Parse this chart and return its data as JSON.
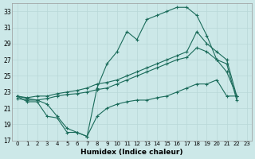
{
  "xlabel": "Humidex (Indice chaleur)",
  "bg_color": "#cce8e8",
  "line_color": "#1a6b5a",
  "grid_color": "#b8d8d8",
  "grid_minor_color": "#ccdddd",
  "ylim": [
    17,
    34
  ],
  "xlim": [
    -0.5,
    23.5
  ],
  "yticks": [
    17,
    19,
    21,
    23,
    25,
    27,
    29,
    31,
    33
  ],
  "xticks": [
    0,
    1,
    2,
    3,
    4,
    5,
    6,
    7,
    8,
    9,
    10,
    11,
    12,
    13,
    14,
    15,
    16,
    17,
    18,
    19,
    20,
    21,
    22,
    23
  ],
  "series": {
    "top": {
      "x": [
        0,
        1,
        2,
        3,
        4,
        5,
        6,
        7,
        8,
        9,
        10,
        11,
        12,
        13,
        14,
        15,
        16,
        17,
        18,
        19,
        20,
        21,
        22
      ],
      "y": [
        22.5,
        22.2,
        22.0,
        21.5,
        20.0,
        18.5,
        18.0,
        17.5,
        23.5,
        26.5,
        28.0,
        30.5,
        29.5,
        32.0,
        32.5,
        33.0,
        33.5,
        33.5,
        32.5,
        30.0,
        27.0,
        25.5,
        22.5
      ]
    },
    "mid_upper": {
      "x": [
        0,
        1,
        2,
        3,
        4,
        5,
        6,
        7,
        8,
        9,
        10,
        11,
        12,
        13,
        14,
        15,
        16,
        17,
        18,
        19,
        20,
        21,
        22
      ],
      "y": [
        22.5,
        22.3,
        22.5,
        22.5,
        22.8,
        23.0,
        23.2,
        23.5,
        24.0,
        24.2,
        24.5,
        25.0,
        25.5,
        26.0,
        26.5,
        27.0,
        27.5,
        28.0,
        30.5,
        29.0,
        28.0,
        27.0,
        22.5
      ]
    },
    "mid_lower": {
      "x": [
        0,
        1,
        2,
        3,
        4,
        5,
        6,
        7,
        8,
        9,
        10,
        11,
        12,
        13,
        14,
        15,
        16,
        17,
        18,
        19,
        20,
        21,
        22
      ],
      "y": [
        22.2,
        22.0,
        22.0,
        22.2,
        22.5,
        22.7,
        22.8,
        23.0,
        23.3,
        23.5,
        24.0,
        24.5,
        25.0,
        25.5,
        26.0,
        26.5,
        27.0,
        27.3,
        28.5,
        28.0,
        27.0,
        26.5,
        22.0
      ]
    },
    "bottom": {
      "x": [
        0,
        1,
        2,
        3,
        4,
        5,
        6,
        7,
        8,
        9,
        10,
        11,
        12,
        13,
        14,
        15,
        16,
        17,
        18,
        19,
        20,
        21,
        22
      ],
      "y": [
        22.5,
        21.8,
        21.8,
        20.0,
        19.8,
        18.0,
        18.0,
        17.5,
        20.0,
        21.0,
        21.5,
        21.8,
        22.0,
        22.0,
        22.3,
        22.5,
        23.0,
        23.5,
        24.0,
        24.0,
        24.5,
        22.5,
        22.5
      ]
    }
  }
}
